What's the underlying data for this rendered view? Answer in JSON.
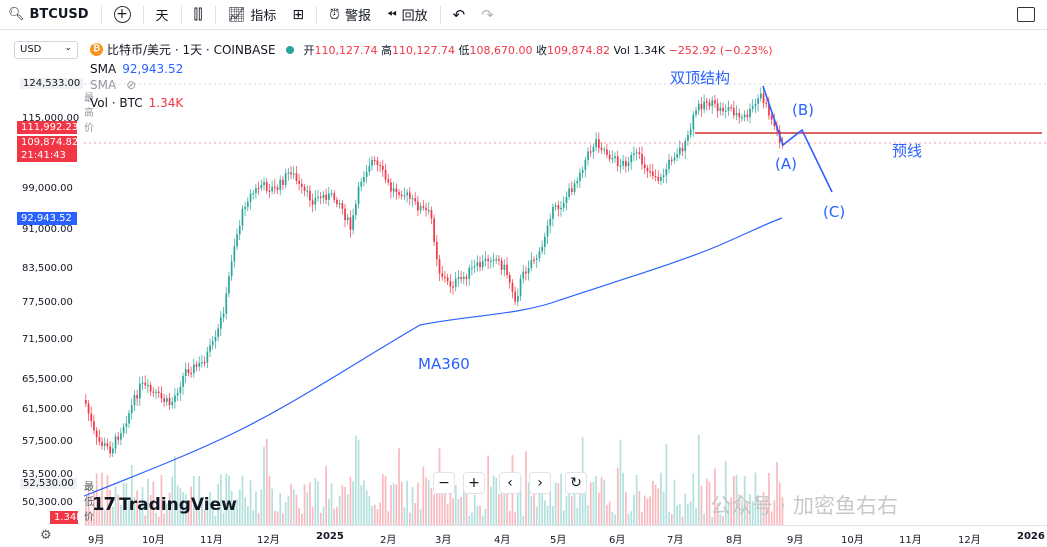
{
  "toolbar": {
    "symbol": "BTCUSD",
    "interval": "天",
    "indicators_label": "指标",
    "alert_label": "警报",
    "replay_label": "回放"
  },
  "axis": {
    "currency": "USD",
    "price_labels": [
      "124,533.00",
      "115,000.00",
      "99,000.00",
      "91,000.00",
      "83,500.00",
      "77,500.00",
      "71,500.00",
      "65,500.00",
      "61,500.00",
      "57,500.00",
      "53,500.00",
      "50,300.00"
    ],
    "high_price": "124,533.00",
    "high_label": "最高价",
    "low_price": "52,530.00",
    "low_label": "最低价",
    "price_tag_1": "111,992.23",
    "price_tag_2": "109,874.82",
    "countdown": "21:41:43",
    "sma_tag": "92,943.52",
    "vol_tag": "1.34K",
    "time_labels": [
      "9月",
      "10月",
      "11月",
      "12月",
      "2025",
      "2月",
      "3月",
      "4月",
      "5月",
      "6月",
      "7月",
      "8月",
      "9月",
      "10月",
      "11月",
      "12月",
      "2026"
    ]
  },
  "legend": {
    "title": "比特币/美元 · 1天 · COINBASE",
    "open_label": "开",
    "open": "110,127.74",
    "high_label": "高",
    "high": "110,127.74",
    "low_label": "低",
    "low": "108,670.00",
    "close_label": "收",
    "close": "109,874.82",
    "vol_summary": "Vol 1.34K",
    "change": "−252.92 (−0.23%)",
    "sma_label": "SMA",
    "sma_value": "92,943.52",
    "sma_ghost": "SMA",
    "vol_label": "Vol · BTC",
    "vol_value": "1.34K"
  },
  "annotations": {
    "double_top": "双顶结构",
    "neckline": "预线",
    "point_a": "(A)",
    "point_b": "(B)",
    "point_c": "(C)",
    "ma_label": "MA360"
  },
  "branding": {
    "logo_text": "TradingView",
    "watermark": "公众号 · 加密鱼右右"
  },
  "colors": {
    "up": "#26a69a",
    "down": "#f23645",
    "sma": "#2962ff",
    "annotation": "#2962ff",
    "neckline": "#d32f2f"
  },
  "icons": [
    "search-icon",
    "add-icon",
    "candles-icon",
    "indicators-icon",
    "layout-icon",
    "alert-icon",
    "replay-icon",
    "undo-icon",
    "redo-icon",
    "fullscreen-icon",
    "settings-icon"
  ]
}
